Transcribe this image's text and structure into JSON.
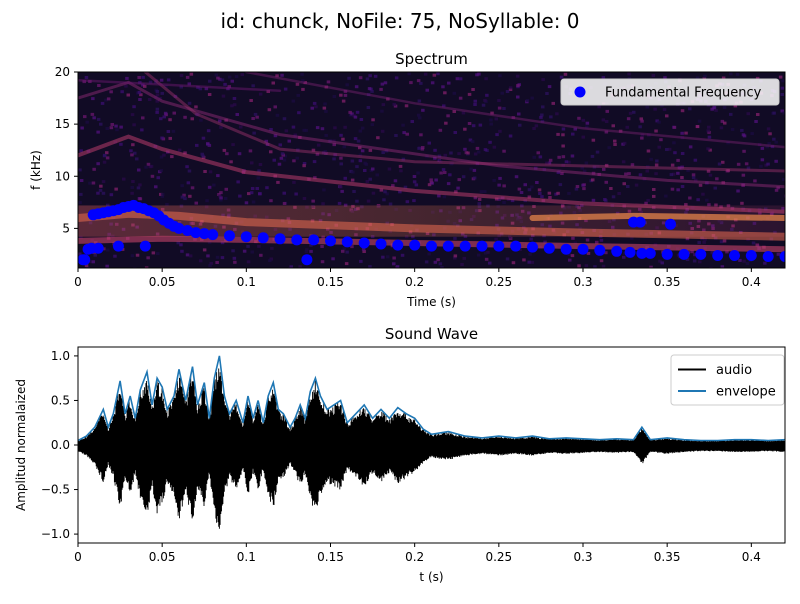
{
  "figure": {
    "suptitle": "id: chunck, NoFile: 75, NoSyllable: 0"
  },
  "chart_data": [
    {
      "type": "heatmap",
      "title": "Spectrum",
      "xlabel": "Time (s)",
      "ylabel": "f (kHz)",
      "xlim": [
        0,
        0.42
      ],
      "ylim": [
        1.2,
        20
      ],
      "xticks": [
        0,
        0.05,
        0.1,
        0.15,
        0.2,
        0.25,
        0.3,
        0.35,
        0.4
      ],
      "xticklabels": [
        "0",
        "0.05",
        "0.1",
        "0.15",
        "0.2",
        "0.25",
        "0.3",
        "0.35",
        "0.4"
      ],
      "yticks": [
        5,
        10,
        15,
        20
      ],
      "yticklabels": [
        "5",
        "10",
        "15",
        "20"
      ],
      "legend": {
        "placement": "top-right",
        "entries": [
          "Fundamental Frequency"
        ]
      },
      "colormap": "magma",
      "series": [
        {
          "name": "Fundamental Frequency",
          "marker": "circle",
          "color": "#0000ff",
          "x": [
            0.003,
            0.006,
            0.009,
            0.012,
            0.015,
            0.018,
            0.021,
            0.024,
            0.027,
            0.03,
            0.033,
            0.036,
            0.039,
            0.042,
            0.045,
            0.048,
            0.051,
            0.054,
            0.057,
            0.06,
            0.065,
            0.07,
            0.075,
            0.08,
            0.09,
            0.1,
            0.11,
            0.12,
            0.13,
            0.14,
            0.15,
            0.16,
            0.17,
            0.18,
            0.19,
            0.2,
            0.21,
            0.22,
            0.23,
            0.24,
            0.25,
            0.26,
            0.27,
            0.28,
            0.29,
            0.3,
            0.31,
            0.32,
            0.328,
            0.335,
            0.34,
            0.35,
            0.36,
            0.37,
            0.38,
            0.39,
            0.4,
            0.41,
            0.42,
            0.004,
            0.008,
            0.012,
            0.024,
            0.04,
            0.136,
            0.33,
            0.334,
            0.352
          ],
          "y": [
            2.0,
            3.0,
            6.3,
            6.4,
            6.5,
            6.6,
            6.7,
            6.8,
            7.0,
            7.1,
            7.2,
            7.0,
            6.9,
            6.7,
            6.5,
            6.2,
            5.8,
            5.5,
            5.2,
            5.0,
            4.8,
            4.6,
            4.5,
            4.4,
            4.3,
            4.2,
            4.1,
            4.0,
            3.9,
            3.9,
            3.8,
            3.7,
            3.6,
            3.5,
            3.4,
            3.4,
            3.3,
            3.3,
            3.3,
            3.3,
            3.3,
            3.3,
            3.2,
            3.1,
            3.0,
            3.0,
            2.9,
            2.8,
            2.7,
            2.6,
            2.6,
            2.5,
            2.5,
            2.5,
            2.4,
            2.4,
            2.4,
            2.3,
            2.3,
            2.0,
            3.1,
            3.1,
            3.3,
            3.3,
            2.0,
            5.6,
            5.6,
            5.4
          ]
        }
      ]
    },
    {
      "type": "line",
      "title": "Sound Wave",
      "xlabel": "t (s)",
      "ylabel": "Amplitud normalaized",
      "xlim": [
        0,
        0.42
      ],
      "ylim": [
        -1.1,
        1.1
      ],
      "xticks": [
        0,
        0.05,
        0.1,
        0.15,
        0.2,
        0.25,
        0.3,
        0.35,
        0.4
      ],
      "xticklabels": [
        "0",
        "0.05",
        "0.1",
        "0.15",
        "0.2",
        "0.25",
        "0.3",
        "0.35",
        "0.4"
      ],
      "yticks": [
        1.0,
        0.5,
        0.0,
        -0.5,
        -1.0
      ],
      "yticklabels": [
        "1.0",
        "0.5",
        "0.0",
        "−0.5",
        "−1.0"
      ],
      "legend": {
        "placement": "top-right",
        "entries": [
          "audio",
          "envelope"
        ]
      },
      "series": [
        {
          "name": "audio",
          "color": "#000000"
        },
        {
          "name": "envelope",
          "color": "#1f77b4",
          "x": [
            0.0,
            0.005,
            0.01,
            0.015,
            0.018,
            0.021,
            0.025,
            0.028,
            0.031,
            0.034,
            0.037,
            0.041,
            0.044,
            0.047,
            0.05,
            0.053,
            0.057,
            0.06,
            0.064,
            0.068,
            0.071,
            0.075,
            0.078,
            0.081,
            0.084,
            0.087,
            0.09,
            0.094,
            0.098,
            0.101,
            0.104,
            0.107,
            0.11,
            0.113,
            0.116,
            0.119,
            0.122,
            0.126,
            0.129,
            0.132,
            0.135,
            0.138,
            0.141,
            0.144,
            0.148,
            0.152,
            0.156,
            0.16,
            0.165,
            0.17,
            0.175,
            0.18,
            0.185,
            0.19,
            0.195,
            0.2,
            0.205,
            0.21,
            0.22,
            0.23,
            0.24,
            0.25,
            0.26,
            0.27,
            0.28,
            0.29,
            0.3,
            0.31,
            0.32,
            0.33,
            0.335,
            0.34,
            0.35,
            0.36,
            0.37,
            0.38,
            0.39,
            0.4,
            0.41,
            0.42
          ],
          "y": [
            0.05,
            0.1,
            0.2,
            0.4,
            0.2,
            0.35,
            0.72,
            0.35,
            0.55,
            0.3,
            0.62,
            0.82,
            0.45,
            0.75,
            0.65,
            0.4,
            0.55,
            0.85,
            0.5,
            0.88,
            0.45,
            0.7,
            0.3,
            0.75,
            1.0,
            0.55,
            0.35,
            0.5,
            0.25,
            0.55,
            0.3,
            0.5,
            0.25,
            0.55,
            0.7,
            0.4,
            0.35,
            0.2,
            0.3,
            0.45,
            0.3,
            0.6,
            0.75,
            0.55,
            0.4,
            0.45,
            0.5,
            0.25,
            0.35,
            0.45,
            0.3,
            0.4,
            0.3,
            0.42,
            0.35,
            0.3,
            0.18,
            0.12,
            0.15,
            0.1,
            0.08,
            0.1,
            0.08,
            0.1,
            0.07,
            0.08,
            0.07,
            0.06,
            0.07,
            0.06,
            0.2,
            0.06,
            0.08,
            0.06,
            0.05,
            0.05,
            0.06,
            0.06,
            0.05,
            0.06
          ]
        }
      ]
    }
  ]
}
